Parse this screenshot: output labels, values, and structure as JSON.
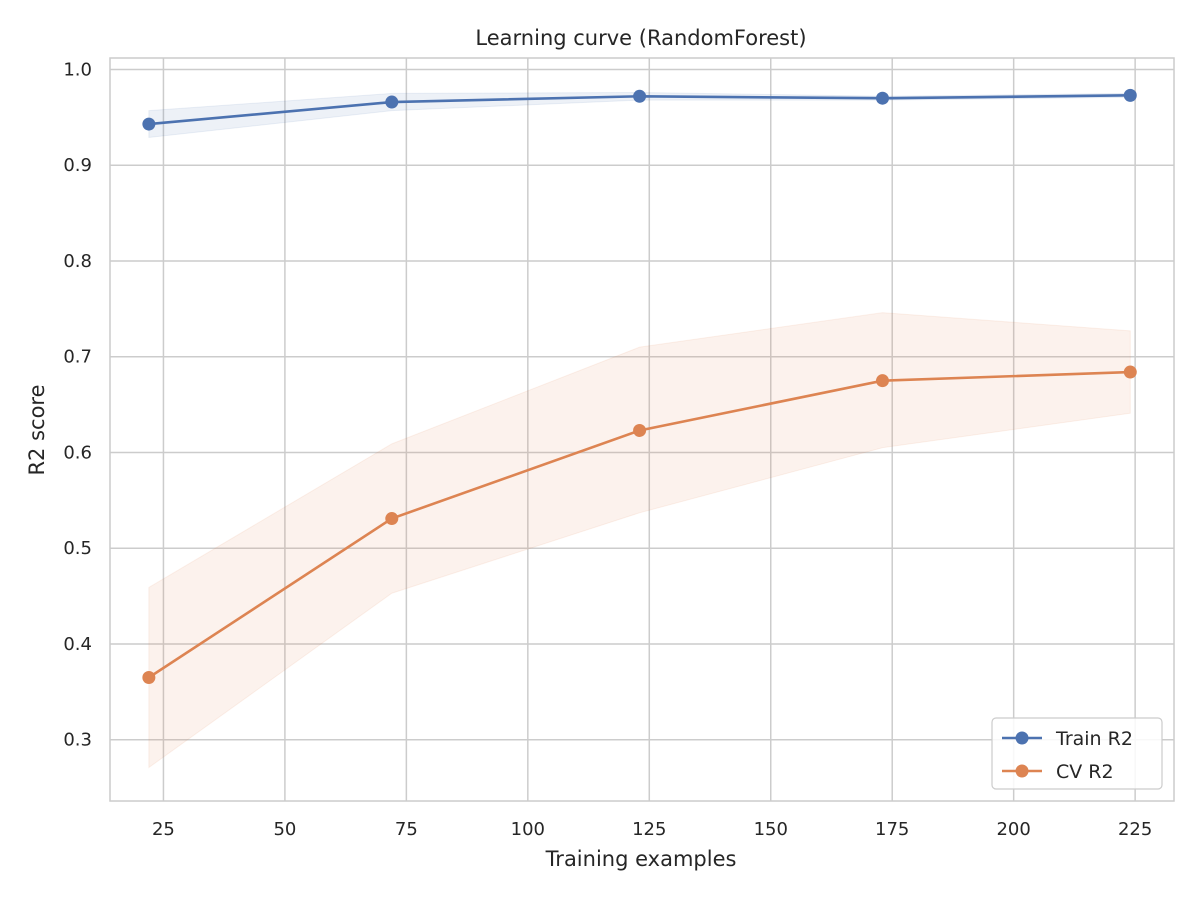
{
  "chart_data": {
    "type": "line",
    "title": "Learning curve (RandomForest)",
    "xlabel": "Training examples",
    "ylabel": "R2 score",
    "x": [
      22,
      72,
      123,
      173,
      224
    ],
    "xlim": [
      14,
      233
    ],
    "ylim": [
      0.236,
      1.012
    ],
    "xticks": [
      25,
      50,
      75,
      100,
      125,
      150,
      175,
      200,
      225
    ],
    "yticks": [
      0.3,
      0.4,
      0.5,
      0.6,
      0.7,
      0.8,
      0.9,
      1.0
    ],
    "grid": true,
    "legend_position": "bottom-right",
    "series": [
      {
        "name": "Train R2",
        "color": "#4C72B0",
        "values": [
          0.943,
          0.966,
          0.972,
          0.97,
          0.973
        ],
        "band_lower": [
          0.929,
          0.957,
          0.968,
          0.968,
          0.971
        ],
        "band_upper": [
          0.957,
          0.975,
          0.976,
          0.972,
          0.975
        ]
      },
      {
        "name": "CV R2",
        "color": "#DD8452",
        "values": [
          0.365,
          0.531,
          0.623,
          0.675,
          0.684
        ],
        "band_lower": [
          0.271,
          0.453,
          0.537,
          0.605,
          0.641
        ],
        "band_upper": [
          0.459,
          0.609,
          0.71,
          0.746,
          0.727
        ]
      }
    ]
  }
}
